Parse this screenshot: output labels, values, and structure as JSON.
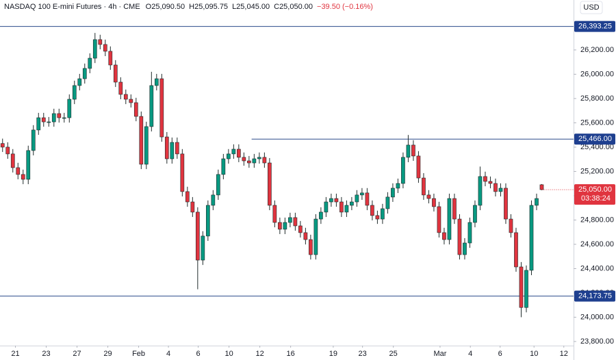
{
  "chart_data": {
    "type": "candlestick",
    "title": "NASDAQ 100 E-mini Futures · 4h · CME",
    "ohlc_header": [
      "O25,090.50",
      "H25,095.75",
      "L25,045.00",
      "C25,050.00"
    ],
    "change_label": "−39.50 (−0.16%)",
    "currency": "USD",
    "countdown": "03:38:24",
    "up_color": "#089981",
    "down_color": "#e0343f",
    "open": [
      25430,
      25400,
      25344,
      25231,
      25175,
      25135,
      25372,
      25541,
      25642,
      25608,
      25608,
      25676,
      25642,
      25642,
      25794,
      25907,
      25963,
      26048,
      26132,
      26285,
      26245,
      26189,
      26076,
      25935,
      25834,
      25794,
      25766,
      25653,
      25259,
      25569,
      25907,
      25963,
      25484,
      25304,
      25439,
      25344,
      25034,
      24949,
      24865,
      24470,
      24668,
      24921,
      25006,
      25175,
      25304,
      25344,
      25383,
      25316,
      25287,
      25270,
      25304,
      25316,
      25270,
      24921,
      24780,
      24724,
      24780,
      24820,
      24752,
      24696,
      24639,
      24515,
      24808,
      24865,
      24949,
      24977,
      24949,
      24865,
      24921,
      24949,
      25006,
      25023,
      24921,
      24837,
      24808,
      24893,
      24989,
      25062,
      25101,
      25316,
      25417,
      25327,
      25146,
      25006,
      24977,
      24910,
      24696,
      24639,
      24977,
      24808,
      24515,
      24611,
      24780,
      24921,
      25158,
      25118,
      25101,
      25034,
      25062,
      24808,
      24696,
      24414,
      24080,
      24386,
      24921,
      25090.5
    ],
    "high": [
      25470,
      25440,
      25384,
      25271,
      25215,
      25412,
      25581,
      25682,
      25682,
      25648,
      25716,
      25716,
      25682,
      25834,
      25947,
      26003,
      26088,
      26172,
      26340,
      26325,
      26285,
      26229,
      26116,
      25975,
      25874,
      25834,
      25806,
      25693,
      25609,
      26020,
      26003,
      26003,
      25524,
      25479,
      25479,
      25384,
      25074,
      24989,
      24905,
      24708,
      24961,
      25046,
      25215,
      25344,
      25384,
      25423,
      25423,
      25356,
      25327,
      25344,
      25356,
      25356,
      25310,
      24961,
      24820,
      24820,
      24860,
      24860,
      24792,
      24736,
      24679,
      24848,
      24905,
      24989,
      25017,
      25017,
      24989,
      24961,
      24989,
      25046,
      25063,
      25063,
      24961,
      24877,
      24933,
      25029,
      25102,
      25141,
      25356,
      25500,
      25457,
      25367,
      25186,
      25046,
      25017,
      24950,
      24736,
      25017,
      25017,
      24848,
      24651,
      24820,
      24961,
      25240,
      25198,
      25158,
      25141,
      25102,
      25102,
      24848,
      24736,
      24454,
      24426,
      24961,
      25017,
      25095.75
    ],
    "low": [
      25360,
      25304,
      25191,
      25135,
      25095,
      25095,
      25332,
      25501,
      25568,
      25568,
      25568,
      25602,
      25602,
      25602,
      25754,
      25867,
      25923,
      26008,
      26092,
      26205,
      26149,
      26036,
      25895,
      25794,
      25754,
      25726,
      25613,
      25219,
      25219,
      25529,
      25867,
      25444,
      25264,
      25264,
      25304,
      24994,
      24909,
      24825,
      24230,
      24430,
      24628,
      24881,
      24966,
      25135,
      25264,
      25304,
      25276,
      25247,
      25230,
      25230,
      25264,
      25230,
      24881,
      24740,
      24684,
      24684,
      24740,
      24712,
      24656,
      24599,
      24475,
      24475,
      24768,
      24825,
      24909,
      24909,
      24825,
      24825,
      24881,
      24909,
      24966,
      24881,
      24797,
      24768,
      24768,
      24853,
      24949,
      25022,
      25061,
      25276,
      25287,
      25106,
      24966,
      24937,
      24870,
      24656,
      24599,
      24599,
      24768,
      24475,
      24475,
      24571,
      24740,
      24881,
      25078,
      25061,
      24994,
      24994,
      24768,
      24656,
      24374,
      24000,
      24040,
      24346,
      24881,
      25045
    ],
    "close": [
      25400,
      25344,
      25231,
      25175,
      25135,
      25372,
      25541,
      25642,
      25608,
      25608,
      25676,
      25642,
      25642,
      25794,
      25907,
      25963,
      26048,
      26132,
      26285,
      26245,
      26189,
      26076,
      25935,
      25834,
      25794,
      25766,
      25653,
      25259,
      25569,
      25907,
      25963,
      25484,
      25304,
      25439,
      25344,
      25034,
      24949,
      24865,
      24470,
      24668,
      24921,
      25006,
      25175,
      25304,
      25344,
      25383,
      25316,
      25287,
      25270,
      25304,
      25316,
      25270,
      24921,
      24780,
      24724,
      24780,
      24820,
      24752,
      24696,
      24639,
      24515,
      24808,
      24865,
      24949,
      24977,
      24949,
      24865,
      24921,
      24949,
      25006,
      25023,
      24921,
      24837,
      24808,
      24893,
      24989,
      25062,
      25101,
      25316,
      25417,
      25327,
      25146,
      25006,
      24977,
      24910,
      24696,
      24639,
      24977,
      24808,
      24515,
      24611,
      24780,
      24921,
      25158,
      25118,
      25101,
      25034,
      25062,
      24808,
      24696,
      24414,
      24080,
      24386,
      24921,
      24977,
      25050
    ],
    "xlim": [
      -0.5,
      111.2
    ],
    "xticks": [
      {
        "value": 2.5,
        "label": "21"
      },
      {
        "value": 8.5,
        "label": "23"
      },
      {
        "value": 14.5,
        "label": "27"
      },
      {
        "value": 20.5,
        "label": "29"
      },
      {
        "value": 26.5,
        "label": "Feb"
      },
      {
        "value": 32.3,
        "label": "4"
      },
      {
        "value": 38.1,
        "label": "6"
      },
      {
        "value": 44.1,
        "label": "10"
      },
      {
        "value": 50.1,
        "label": "12"
      },
      {
        "value": 56.1,
        "label": "16"
      },
      {
        "value": 64.4,
        "label": "19"
      },
      {
        "value": 70.1,
        "label": "23"
      },
      {
        "value": 76.1,
        "label": "25"
      },
      {
        "value": 85.2,
        "label": "Mar"
      },
      {
        "value": 91.1,
        "label": "4"
      },
      {
        "value": 96.9,
        "label": "6"
      },
      {
        "value": 103.5,
        "label": "10"
      },
      {
        "value": 109.3,
        "label": "12"
      }
    ],
    "ylim": [
      23766,
      26611
    ],
    "yticks": [
      {
        "value": 23800,
        "label": "23,800.00"
      },
      {
        "value": 24000,
        "label": "24,000.00"
      },
      {
        "value": 24200,
        "label": "24,200.00"
      },
      {
        "value": 24400,
        "label": "24,400.00"
      },
      {
        "value": 24600,
        "label": "24,600.00"
      },
      {
        "value": 24800,
        "label": "24,800.00"
      },
      {
        "value": 25000,
        "label": "25,000.00"
      },
      {
        "value": 25200,
        "label": "25,200.00"
      },
      {
        "value": 25400,
        "label": "25,400.00"
      },
      {
        "value": 25600,
        "label": "25,600.00"
      },
      {
        "value": 25800,
        "label": "25,800.00"
      },
      {
        "value": 26000,
        "label": "26,000.00"
      },
      {
        "value": 26200,
        "label": "26,200.00"
      }
    ],
    "hlines": [
      {
        "value": 26393.25,
        "label": "26,393.25",
        "x_start": -0.5
      },
      {
        "value": 25466,
        "label": "25,466.00",
        "x_start": 48.5
      },
      {
        "value": 24173.75,
        "label": "24,173.75",
        "x_start": -0.5
      }
    ],
    "last_price": {
      "value": 25050,
      "label": "25,050.00"
    },
    "grid": false
  }
}
